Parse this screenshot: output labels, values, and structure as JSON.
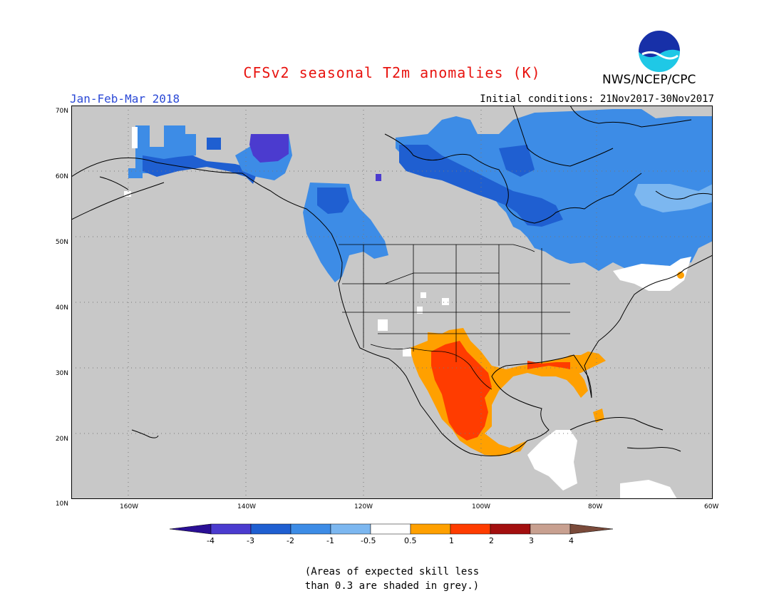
{
  "header": {
    "title": "CFSv2 seasonal T2m anomalies (K)",
    "period": "Jan-Feb-Mar 2018",
    "initial_conditions": "Initial conditions: 21Nov2017-30Nov2017",
    "agency": "NWS/NCEP/CPC",
    "logo_text": "NOAA"
  },
  "map": {
    "lat_labels": [
      "70N",
      "60N",
      "50N",
      "40N",
      "30N",
      "20N",
      "10N"
    ],
    "lon_labels": [
      "160W",
      "140W",
      "120W",
      "100W",
      "80W",
      "60W"
    ],
    "land_color": "#c8c8c8",
    "border_color": "#000000"
  },
  "colorbar": {
    "labels": [
      "-4",
      "-3",
      "-2",
      "-1",
      "-0.5",
      "0.5",
      "1",
      "2",
      "3",
      "4"
    ],
    "colors": [
      "#2a0f95",
      "#4b3bcf",
      "#1f5fd1",
      "#3d8ce6",
      "#7cb7f0",
      "#ffffff",
      "#ffa000",
      "#ff3c00",
      "#a30f0f",
      "#c8a090",
      "#7a4a3a"
    ]
  },
  "note": {
    "line1": "(Areas of expected skill less",
    "line2": "than 0.3 are shaded in grey.)"
  }
}
